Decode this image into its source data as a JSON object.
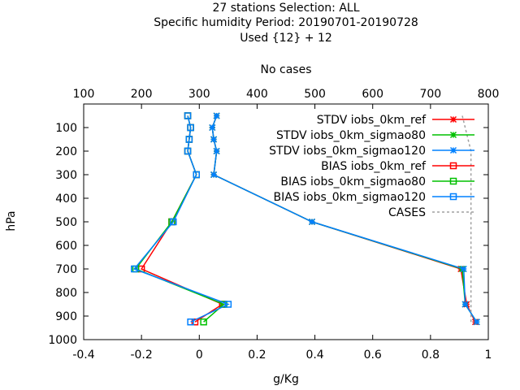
{
  "chart_data": {
    "type": "line",
    "title_lines": [
      "27 stations Selection: ALL",
      "Specific humidity  Period: 20190701-20190728",
      "Used {12} + 12"
    ],
    "xlabel": "g/Kg",
    "ylabel": "hPa",
    "x2label": "No cases",
    "xlim": [
      -0.4,
      1.0
    ],
    "x2lim": [
      100,
      800
    ],
    "ylim": [
      0,
      1000
    ],
    "y_reversed": true,
    "grid": false,
    "legend_position": "top-right",
    "x_ticks": [
      -0.4,
      -0.2,
      0,
      0.2,
      0.4,
      0.6,
      0.8,
      1
    ],
    "x_tick_labels": [
      "-0.4",
      "-0.2",
      "0",
      "0.2",
      "0.4",
      "0.6",
      "0.8",
      "1"
    ],
    "x2_ticks": [
      100,
      200,
      300,
      400,
      500,
      600,
      700,
      800
    ],
    "x2_tick_labels": [
      "100",
      "200",
      "300",
      "400",
      "500",
      "600",
      "700",
      "800"
    ],
    "y_ticks": [
      100,
      200,
      300,
      400,
      500,
      600,
      700,
      800,
      900,
      1000
    ],
    "y_tick_labels": [
      "100",
      "200",
      "300",
      "400",
      "500",
      "600",
      "700",
      "800",
      "900",
      "1000"
    ],
    "series": [
      {
        "name": "STDV iobs_0km_ref",
        "color": "#ff0000",
        "marker": "x",
        "axis": "x",
        "points": [
          [
            0.06,
            50
          ],
          [
            0.045,
            100
          ],
          [
            0.05,
            150
          ],
          [
            0.06,
            200
          ],
          [
            0.05,
            300
          ],
          [
            0.39,
            500
          ],
          [
            0.905,
            700
          ],
          [
            0.925,
            850
          ],
          [
            0.955,
            925
          ]
        ]
      },
      {
        "name": "STDV iobs_0km_sigmao80",
        "color": "#00c000",
        "marker": "x",
        "axis": "x",
        "points": [
          [
            0.06,
            50
          ],
          [
            0.045,
            100
          ],
          [
            0.05,
            150
          ],
          [
            0.06,
            200
          ],
          [
            0.05,
            300
          ],
          [
            0.39,
            500
          ],
          [
            0.91,
            700
          ],
          [
            0.92,
            850
          ],
          [
            0.96,
            925
          ]
        ]
      },
      {
        "name": "STDV iobs_0km_sigmao120",
        "color": "#0080ff",
        "marker": "x",
        "axis": "x",
        "points": [
          [
            0.06,
            50
          ],
          [
            0.045,
            100
          ],
          [
            0.05,
            150
          ],
          [
            0.06,
            200
          ],
          [
            0.05,
            300
          ],
          [
            0.39,
            500
          ],
          [
            0.915,
            700
          ],
          [
            0.92,
            850
          ],
          [
            0.96,
            925
          ]
        ]
      },
      {
        "name": "BIAS iobs_0km_ref",
        "color": "#ff0000",
        "marker": "square",
        "axis": "x",
        "points": [
          [
            -0.04,
            50
          ],
          [
            -0.03,
            100
          ],
          [
            -0.035,
            150
          ],
          [
            -0.04,
            200
          ],
          [
            -0.01,
            300
          ],
          [
            -0.095,
            500
          ],
          [
            -0.2,
            700
          ],
          [
            0.08,
            850
          ],
          [
            -0.015,
            925
          ]
        ]
      },
      {
        "name": "BIAS iobs_0km_sigmao80",
        "color": "#00c000",
        "marker": "square",
        "axis": "x",
        "points": [
          [
            -0.04,
            50
          ],
          [
            -0.03,
            100
          ],
          [
            -0.035,
            150
          ],
          [
            -0.04,
            200
          ],
          [
            -0.01,
            300
          ],
          [
            -0.095,
            500
          ],
          [
            -0.22,
            700
          ],
          [
            0.085,
            850
          ],
          [
            0.015,
            925
          ]
        ]
      },
      {
        "name": "BIAS iobs_0km_sigmao120",
        "color": "#0080ff",
        "marker": "square",
        "axis": "x",
        "points": [
          [
            -0.04,
            50
          ],
          [
            -0.03,
            100
          ],
          [
            -0.035,
            150
          ],
          [
            -0.04,
            200
          ],
          [
            -0.01,
            300
          ],
          [
            -0.09,
            500
          ],
          [
            -0.225,
            700
          ],
          [
            0.1,
            850
          ],
          [
            -0.03,
            925
          ]
        ]
      },
      {
        "name": "CASES",
        "color": "#a0a0a0",
        "marker": "none",
        "dashed": true,
        "axis": "x2",
        "points": [
          [
            755,
            50
          ],
          [
            760,
            100
          ],
          [
            765,
            150
          ],
          [
            770,
            200
          ],
          [
            770,
            300
          ],
          [
            770,
            500
          ],
          [
            770,
            700
          ],
          [
            770,
            850
          ],
          [
            770,
            925
          ]
        ]
      }
    ]
  }
}
